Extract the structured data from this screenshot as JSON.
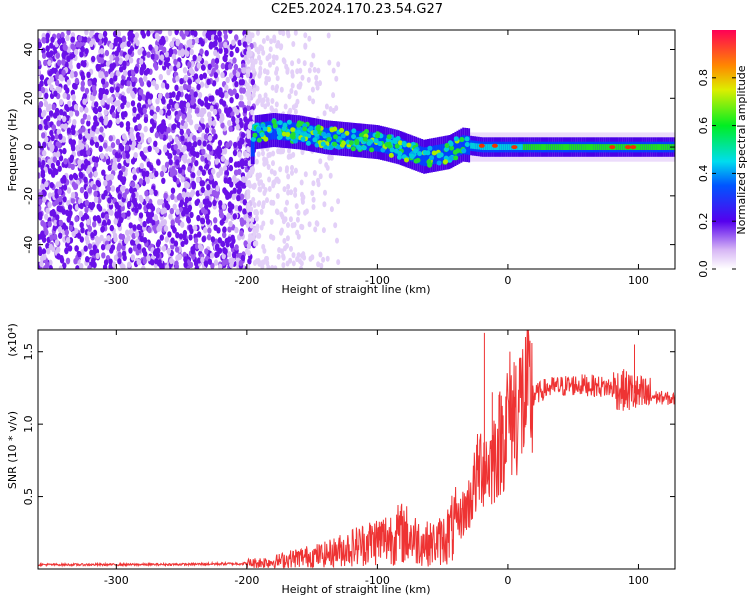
{
  "title": "C2E5.2024.170.23.54.G27",
  "chart_data": [
    {
      "type": "heatmap",
      "xlabel": "Height of straight line (km)",
      "ylabel": "Frequency (Hz)",
      "xlim": [
        -360,
        128
      ],
      "ylim": [
        -50,
        48
      ],
      "xticks": [
        -300,
        -200,
        -100,
        0,
        100
      ],
      "yticks": [
        -40,
        -20,
        0,
        20,
        40
      ],
      "colorbar": {
        "label": "Normalized spectral amplitude",
        "range": [
          0,
          1
        ],
        "ticks": [
          0.0,
          0.2,
          0.4,
          0.6,
          0.8
        ]
      },
      "signal_center_hz": [
        {
          "x": -195,
          "y": 6
        },
        {
          "x": -180,
          "y": 7
        },
        {
          "x": -160,
          "y": 6
        },
        {
          "x": -140,
          "y": 4
        },
        {
          "x": -120,
          "y": 3
        },
        {
          "x": -100,
          "y": 2
        },
        {
          "x": -85,
          "y": 0
        },
        {
          "x": -75,
          "y": -2
        },
        {
          "x": -65,
          "y": -4
        },
        {
          "x": -55,
          "y": -3
        },
        {
          "x": -45,
          "y": -2
        },
        {
          "x": -35,
          "y": 1
        },
        {
          "x": -20,
          "y": 0
        },
        {
          "x": 0,
          "y": 0
        },
        {
          "x": 50,
          "y": 0
        },
        {
          "x": 128,
          "y": 0
        }
      ],
      "grid": false
    },
    {
      "type": "line",
      "xlabel": "Height of straight line (km)",
      "ylabel": "SNR (10 * v/v)",
      "y_multiplier": "(x10⁴)",
      "xlim": [
        -360,
        128
      ],
      "ylim": [
        0,
        16500
      ],
      "xticks": [
        -300,
        -200,
        -100,
        0,
        100
      ],
      "yticks": [
        {
          "value": 5000,
          "label": "0.5"
        },
        {
          "value": 10000,
          "label": "1.0"
        },
        {
          "value": 15000,
          "label": "1.5"
        }
      ],
      "series": [
        {
          "color": "#ee3333",
          "x": [
            -360,
            -300,
            -250,
            -200,
            -180,
            -160,
            -140,
            -120,
            -100,
            -90,
            -80,
            -70,
            -60,
            -50,
            -40,
            -30,
            -25,
            -20,
            -15,
            -10,
            -5,
            0,
            10,
            20,
            30,
            40,
            50,
            60,
            70,
            80,
            90,
            95,
            100,
            110,
            120,
            128
          ],
          "y": [
            300,
            300,
            320,
            380,
            500,
            800,
            1000,
            1500,
            2000,
            2200,
            2500,
            2000,
            1700,
            2000,
            3000,
            4500,
            6000,
            7500,
            7000,
            8000,
            9000,
            10500,
            11500,
            12000,
            12500,
            12600,
            12700,
            12700,
            12600,
            12500,
            12300,
            12200,
            12000,
            11900,
            11800,
            11700
          ],
          "peaks": [
            {
              "x": -18,
              "y": 16300
            },
            {
              "x": -12,
              "y": 12200
            },
            {
              "x": 97,
              "y": 15500
            },
            {
              "x": 88,
              "y": 13500
            }
          ]
        }
      ],
      "grid": false
    }
  ]
}
